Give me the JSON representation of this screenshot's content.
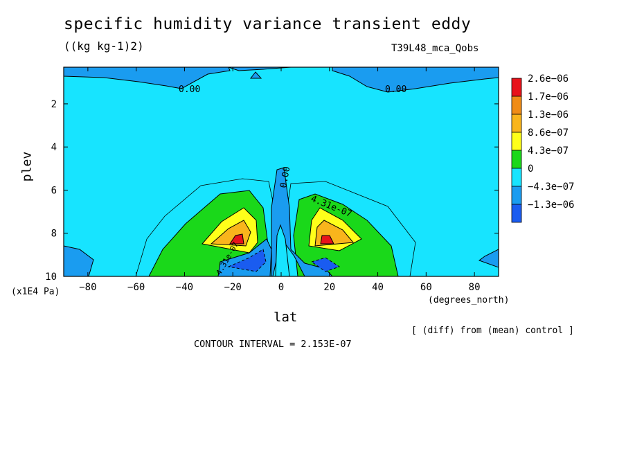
{
  "chart_data": {
    "type": "heatmap",
    "title": "specific humidity variance transient eddy",
    "units": "((kg kg-1)2)",
    "run_label": "T39L48_mca_Qobs",
    "xlabel": "lat",
    "xunit": "(degrees_north)",
    "ylabel": "plev",
    "yunit": "(x1E4 Pa)",
    "xlim": [
      -90,
      90
    ],
    "ylim": [
      10,
      0.3
    ],
    "x_ticks": [
      -80,
      -60,
      -40,
      -20,
      0,
      20,
      40,
      60,
      80
    ],
    "y_ticks": [
      2,
      4,
      6,
      8,
      10
    ],
    "legend": {
      "placement": "right",
      "levels": [
        "2.6e-06",
        "1.7e-06",
        "1.3e-06",
        "8.6e-07",
        "4.3e-07",
        "0",
        "-4.3e-07",
        "-1.3e-06"
      ],
      "colors": [
        "#e8121a",
        "#f08c16",
        "#f9b51c",
        "#ffff1a",
        "#1ad81a",
        "#17e4ff",
        "#1a9cf0",
        "#1a5cf0"
      ]
    },
    "contour_labels": [
      "0.00",
      "0.00",
      "0.00",
      "4.31e-07",
      "4.31e-07"
    ],
    "contour_interval_text": "CONTOUR INTERVAL = 2.153E-07",
    "note": "[ (diff) from (mean) control ]",
    "colors": {
      "background_fill": "#17e4ff",
      "negative_fill": "#1a9cf0"
    }
  }
}
